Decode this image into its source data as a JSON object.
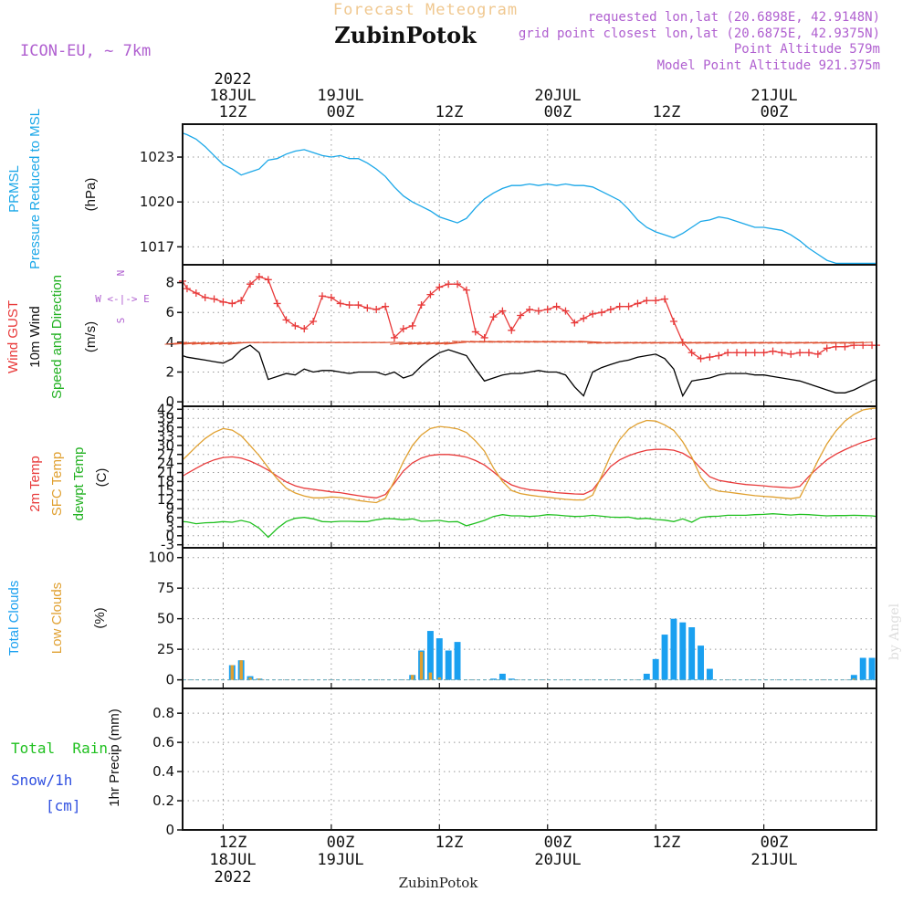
{
  "header": {
    "subtitle": "Forecast Meteogram",
    "location": "ZubinPotok",
    "model": "ICON-EU, ~ 7km",
    "requested": "requested lon,lat (20.6898E, 42.9148N)",
    "closest": "grid point closest lon,lat (20.6875E, 42.9375N)",
    "point_alt": "Point Altitude 579m",
    "model_alt": "Model Point Altitude 921.375m",
    "footer_location": "ZubinPotok",
    "credit": "by Angel"
  },
  "time_axis": {
    "top": [
      {
        "t": 12,
        "lines": [
          "2022",
          "18JUL",
          "12Z"
        ]
      },
      {
        "t": 24,
        "lines": [
          "19JUL",
          "00Z"
        ]
      },
      {
        "t": 36,
        "lines": [
          "12Z"
        ]
      },
      {
        "t": 48,
        "lines": [
          "20JUL",
          "00Z"
        ]
      },
      {
        "t": 60,
        "lines": [
          "12Z"
        ]
      },
      {
        "t": 72,
        "lines": [
          "21JUL",
          "00Z"
        ]
      }
    ],
    "bottom": [
      {
        "t": 12,
        "lines": [
          "12Z",
          "18JUL",
          "2022"
        ]
      },
      {
        "t": 24,
        "lines": [
          "00Z",
          "19JUL"
        ]
      },
      {
        "t": 36,
        "lines": [
          "12Z"
        ]
      },
      {
        "t": 48,
        "lines": [
          "00Z",
          "20JUL"
        ]
      },
      {
        "t": 60,
        "lines": [
          "12Z"
        ]
      },
      {
        "t": 72,
        "lines": [
          "00Z",
          "21JUL"
        ]
      }
    ],
    "range_hours": [
      7.5,
      84.5
    ]
  },
  "colors": {
    "pressure": "#1aa7e8",
    "gust": "#e83a3a",
    "wind": "#000000",
    "t2m": "#e83a3a",
    "sfc": "#e0a030",
    "dewpt": "#20c020",
    "total_clouds": "#1aa0f0",
    "low_clouds": "#e0a030",
    "rain": "#20c020",
    "snow": "#3050e0",
    "grid": "#999999",
    "header_orange": "#f0c890",
    "header_purple": "#b060d0"
  },
  "chart_data": [
    {
      "type": "line",
      "panel": "pressure",
      "ylabel_left": [
        "PRMSL",
        "Pressure Reduced to MSL"
      ],
      "ylabel_right": "(hPa)",
      "yticks": [
        1017,
        1020,
        1023
      ],
      "ylim": [
        1015.8,
        1025.2
      ],
      "x": [
        7.5,
        8,
        9,
        10,
        11,
        12,
        13,
        14,
        15,
        16,
        17,
        18,
        19,
        20,
        21,
        22,
        23,
        24,
        25,
        26,
        27,
        28,
        29,
        30,
        31,
        32,
        33,
        34,
        35,
        36,
        37,
        38,
        39,
        40,
        41,
        42,
        43,
        44,
        45,
        46,
        47,
        48,
        49,
        50,
        51,
        52,
        53,
        54,
        55,
        56,
        57,
        58,
        59,
        60,
        61,
        62,
        63,
        64,
        65,
        66,
        67,
        68,
        69,
        70,
        71,
        72,
        73,
        74,
        75,
        76,
        77,
        78,
        79,
        80,
        81,
        82,
        83,
        84,
        84.5
      ],
      "series": [
        {
          "name": "PRMSL",
          "values": [
            1024.6,
            1024.5,
            1024.2,
            1023.7,
            1023.1,
            1022.5,
            1022.2,
            1021.8,
            1022.0,
            1022.2,
            1022.8,
            1022.9,
            1023.2,
            1023.4,
            1023.5,
            1023.3,
            1023.1,
            1023.0,
            1023.1,
            1022.9,
            1022.9,
            1022.6,
            1022.2,
            1021.7,
            1021.0,
            1020.4,
            1020.0,
            1019.7,
            1019.4,
            1019.0,
            1018.8,
            1018.6,
            1018.9,
            1019.6,
            1020.2,
            1020.6,
            1020.9,
            1021.1,
            1021.1,
            1021.2,
            1021.1,
            1021.2,
            1021.1,
            1021.2,
            1021.1,
            1021.1,
            1021.0,
            1020.7,
            1020.4,
            1020.1,
            1019.5,
            1018.8,
            1018.3,
            1018.0,
            1017.8,
            1017.6,
            1017.9,
            1018.3,
            1018.7,
            1018.8,
            1019.0,
            1018.9,
            1018.7,
            1018.5,
            1018.3,
            1018.3,
            1018.2,
            1018.1,
            1017.8,
            1017.4,
            1016.9,
            1016.5,
            1016.1,
            1015.9,
            1015.9,
            1015.9,
            1015.9,
            1015.9,
            1015.9
          ]
        }
      ]
    },
    {
      "type": "line",
      "panel": "wind",
      "ylabel_left": [
        "Wind GUST",
        "10m Wind",
        "Speed and Direction"
      ],
      "ylabel_right": "(m/s)",
      "compass": [
        "N",
        "W <-|-> E",
        "S"
      ],
      "yticks": [
        0,
        2,
        4,
        6,
        8
      ],
      "ylim": [
        -0.3,
        9.2
      ],
      "x": [
        7.5,
        8,
        9,
        10,
        11,
        12,
        13,
        14,
        15,
        16,
        17,
        18,
        19,
        20,
        21,
        22,
        23,
        24,
        25,
        26,
        27,
        28,
        29,
        30,
        31,
        32,
        33,
        34,
        35,
        36,
        37,
        38,
        39,
        40,
        41,
        42,
        43,
        44,
        45,
        46,
        47,
        48,
        49,
        50,
        51,
        52,
        53,
        54,
        55,
        56,
        57,
        58,
        59,
        60,
        61,
        62,
        63,
        64,
        65,
        66,
        67,
        68,
        69,
        70,
        71,
        72,
        73,
        74,
        75,
        76,
        77,
        78,
        79,
        80,
        81,
        82,
        83,
        84,
        84.5
      ],
      "series": [
        {
          "name": "Wind GUST",
          "values": [
            8.1,
            7.6,
            7.3,
            7.0,
            6.9,
            6.7,
            6.6,
            6.8,
            7.9,
            8.4,
            8.2,
            6.6,
            5.5,
            5.1,
            4.9,
            5.4,
            7.1,
            7.0,
            6.6,
            6.5,
            6.5,
            6.3,
            6.2,
            6.4,
            4.3,
            4.9,
            5.1,
            6.5,
            7.2,
            7.7,
            7.9,
            7.9,
            7.5,
            4.7,
            4.3,
            5.7,
            6.1,
            4.8,
            5.8,
            6.2,
            6.1,
            6.2,
            6.4,
            6.1,
            5.3,
            5.6,
            5.9,
            6.0,
            6.2,
            6.4,
            6.4,
            6.6,
            6.8,
            6.8,
            6.9,
            5.4,
            4.0,
            3.3,
            2.9,
            3.0,
            3.1,
            3.3,
            3.3,
            3.3,
            3.3,
            3.3,
            3.4,
            3.3,
            3.2,
            3.3,
            3.3,
            3.2,
            3.6,
            3.7,
            3.7,
            3.8,
            3.8,
            3.8,
            3.8
          ]
        },
        {
          "name": "10m Wind",
          "values": [
            3.1,
            3.0,
            2.9,
            2.8,
            2.7,
            2.6,
            2.9,
            3.5,
            3.8,
            3.3,
            1.5,
            1.7,
            1.9,
            1.8,
            2.2,
            2.0,
            2.1,
            2.1,
            2.0,
            1.9,
            2.0,
            2.0,
            2.0,
            1.8,
            2.0,
            1.6,
            1.8,
            2.4,
            2.9,
            3.3,
            3.5,
            3.3,
            3.1,
            2.2,
            1.4,
            1.6,
            1.8,
            1.9,
            1.9,
            2.0,
            2.1,
            2.0,
            2.0,
            1.8,
            1.0,
            0.4,
            2.0,
            2.3,
            2.5,
            2.7,
            2.8,
            3.0,
            3.1,
            3.2,
            2.9,
            2.2,
            0.4,
            1.4,
            1.5,
            1.6,
            1.8,
            1.9,
            1.9,
            1.9,
            1.8,
            1.8,
            1.7,
            1.6,
            1.5,
            1.4,
            1.2,
            1.0,
            0.8,
            0.6,
            0.6,
            0.8,
            1.1,
            1.4,
            1.5
          ]
        }
      ]
    },
    {
      "type": "line",
      "panel": "temperature",
      "ylabel_left": [
        "2m Temp",
        "SFC Temp",
        "dewpt Temp"
      ],
      "ylabel_right": "(C)",
      "yticks": [
        -3,
        0,
        3,
        6,
        9,
        12,
        15,
        18,
        21,
        24,
        27,
        30,
        33,
        36,
        39,
        42
      ],
      "ylim": [
        -4,
        43
      ],
      "x": [
        7.5,
        8,
        9,
        10,
        11,
        12,
        13,
        14,
        15,
        16,
        17,
        18,
        19,
        20,
        21,
        22,
        23,
        24,
        25,
        26,
        27,
        28,
        29,
        30,
        31,
        32,
        33,
        34,
        35,
        36,
        37,
        38,
        39,
        40,
        41,
        42,
        43,
        44,
        45,
        46,
        47,
        48,
        49,
        50,
        51,
        52,
        53,
        54,
        55,
        56,
        57,
        58,
        59,
        60,
        61,
        62,
        63,
        64,
        65,
        66,
        67,
        68,
        69,
        70,
        71,
        72,
        73,
        74,
        75,
        76,
        77,
        78,
        79,
        80,
        81,
        82,
        83,
        84,
        84.5
      ],
      "series": [
        {
          "name": "2m Temp",
          "values": [
            19.8,
            20.7,
            22.4,
            24.0,
            25.2,
            26.0,
            26.2,
            25.8,
            24.8,
            23.4,
            21.8,
            19.8,
            17.9,
            16.6,
            15.8,
            15.4,
            15.0,
            14.6,
            14.3,
            13.8,
            13.3,
            12.9,
            12.6,
            13.7,
            17.4,
            21.5,
            24.2,
            25.8,
            26.7,
            27.0,
            27.0,
            26.7,
            26.1,
            25.0,
            23.5,
            21.2,
            18.7,
            16.9,
            15.9,
            15.3,
            15.0,
            14.7,
            14.3,
            14.1,
            13.9,
            13.8,
            15.2,
            19.2,
            23.0,
            25.2,
            26.6,
            27.6,
            28.4,
            28.7,
            28.7,
            28.4,
            27.4,
            25.6,
            22.4,
            19.6,
            18.4,
            17.9,
            17.4,
            17.0,
            16.8,
            16.6,
            16.3,
            16.1,
            15.9,
            16.4,
            19.7,
            22.6,
            25.2,
            27.1,
            28.6,
            29.9,
            31.1,
            32.0,
            32.4
          ]
        },
        {
          "name": "SFC Temp",
          "values": [
            25.2,
            26.6,
            29.6,
            32.3,
            34.3,
            35.6,
            35.1,
            33.2,
            30.0,
            26.6,
            22.6,
            18.9,
            15.8,
            14.2,
            13.2,
            12.6,
            12.6,
            12.9,
            12.7,
            12.3,
            11.7,
            11.3,
            11.0,
            12.4,
            18.2,
            24.6,
            30.0,
            33.5,
            35.6,
            36.3,
            36.0,
            35.5,
            34.3,
            31.5,
            28.1,
            22.5,
            18.0,
            15.0,
            14.0,
            13.5,
            13.1,
            12.8,
            12.4,
            12.1,
            11.9,
            11.9,
            13.5,
            19.9,
            26.7,
            31.9,
            35.4,
            37.2,
            38.3,
            38.1,
            36.8,
            35.0,
            31.2,
            26.1,
            19.5,
            15.8,
            14.8,
            14.5,
            14.1,
            13.7,
            13.3,
            13.1,
            12.9,
            12.6,
            12.3,
            12.8,
            18.7,
            24.9,
            30.5,
            34.8,
            38.1,
            40.3,
            41.8,
            42.3,
            42.4
          ]
        },
        {
          "name": "dewpt Temp",
          "values": [
            4.7,
            4.6,
            4.0,
            4.3,
            4.4,
            4.7,
            4.5,
            5.1,
            4.4,
            2.5,
            -0.5,
            2.4,
            4.7,
            5.8,
            6.1,
            5.6,
            4.7,
            4.6,
            4.8,
            4.8,
            4.7,
            4.7,
            5.3,
            5.7,
            5.6,
            5.3,
            5.6,
            4.8,
            4.9,
            5.1,
            4.6,
            4.7,
            3.3,
            4.2,
            5.1,
            6.4,
            7.0,
            6.6,
            6.6,
            6.4,
            6.6,
            7.0,
            6.9,
            6.6,
            6.4,
            6.5,
            6.8,
            6.5,
            6.2,
            6.1,
            6.2,
            5.6,
            5.8,
            5.4,
            5.2,
            4.7,
            5.6,
            4.5,
            6.1,
            6.4,
            6.5,
            6.8,
            6.8,
            6.8,
            7.0,
            7.1,
            7.3,
            7.1,
            6.9,
            7.1,
            7.0,
            6.8,
            6.6,
            6.7,
            6.7,
            6.8,
            6.7,
            6.6,
            6.4
          ]
        }
      ]
    },
    {
      "type": "bar",
      "panel": "clouds",
      "ylabel_left": [
        "Total Clouds",
        "Low Clouds"
      ],
      "ylabel_right": "(%)",
      "yticks": [
        0,
        25,
        50,
        75,
        100
      ],
      "ylim": [
        -7,
        108
      ],
      "x": [
        13,
        14,
        15,
        16,
        33,
        34,
        35,
        36,
        37,
        38,
        39,
        40,
        42,
        43,
        44,
        59,
        60,
        61,
        62,
        63,
        64,
        65,
        66,
        67,
        68,
        82,
        83,
        84
      ],
      "series": [
        {
          "name": "Total Clouds",
          "values": [
            12,
            16,
            3,
            1,
            4,
            24,
            40,
            34,
            24,
            31,
            0,
            0,
            1,
            5,
            1,
            5,
            17,
            37,
            50,
            47,
            43,
            28,
            9,
            0,
            0,
            4,
            18,
            18
          ]
        },
        {
          "name": "Low Clouds",
          "values": [
            12,
            16,
            2,
            1,
            4,
            23,
            6,
            2,
            0,
            0,
            0,
            0,
            0,
            0,
            0,
            0,
            0,
            0,
            0,
            0,
            0,
            0,
            0,
            0,
            0,
            1,
            0,
            0
          ]
        }
      ]
    },
    {
      "type": "bar",
      "panel": "precip",
      "ylabel_left": [
        "Total  Rain",
        "Snow/1h",
        "[cm]"
      ],
      "ylabel_right": "1hr Precip (mm)",
      "yticks": [
        0,
        0.2,
        0.4,
        0.6,
        0.8
      ],
      "ylim": [
        0,
        0.97
      ],
      "series": [
        {
          "name": "Total Rain",
          "values": []
        },
        {
          "name": "Snow/1h",
          "values": []
        }
      ]
    }
  ]
}
